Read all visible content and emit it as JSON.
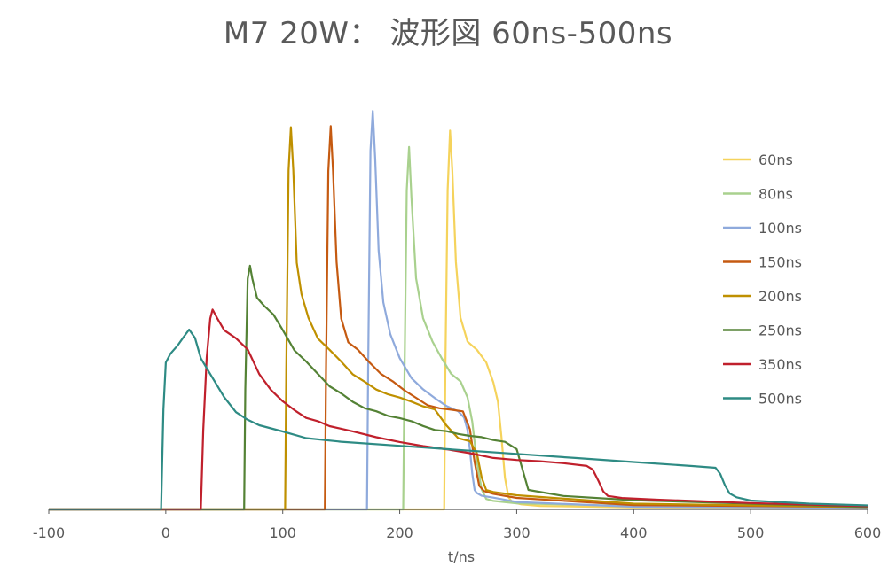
{
  "chart_data": {
    "type": "line",
    "title": "M7 20W： 波形図 60ns-500ns",
    "xlabel": "t/ns",
    "ylabel": "",
    "xlim": [
      -100,
      600
    ],
    "ylim": [
      0,
      1
    ],
    "x_ticks": [
      "-100",
      "0",
      "100",
      "200",
      "300",
      "400",
      "500",
      "600"
    ],
    "x_tick_values": [
      -100,
      0,
      100,
      200,
      300,
      400,
      500,
      600
    ],
    "grid": false,
    "legend_position": "right",
    "series": [
      {
        "name": "60ns",
        "color": "#f5d35c",
        "x": [
          -100,
          238,
          239,
          241,
          243,
          245,
          248,
          252,
          258,
          266,
          274,
          280,
          284,
          287,
          290,
          293,
          296,
          299,
          304,
          320,
          400,
          600
        ],
        "y": [
          0,
          0.0,
          0.35,
          0.8,
          0.95,
          0.85,
          0.62,
          0.48,
          0.42,
          0.4,
          0.37,
          0.32,
          0.27,
          0.18,
          0.08,
          0.03,
          0.02,
          0.015,
          0.012,
          0.01,
          0.005,
          0.003
        ]
      },
      {
        "name": "80ns",
        "color": "#a9d18e",
        "x": [
          -100,
          203,
          204,
          206,
          208,
          210,
          214,
          220,
          228,
          236,
          244,
          252,
          258,
          262,
          266,
          270,
          274,
          280,
          300,
          400,
          600
        ],
        "y": [
          0,
          0.0,
          0.3,
          0.8,
          0.91,
          0.78,
          0.58,
          0.48,
          0.42,
          0.38,
          0.34,
          0.32,
          0.28,
          0.22,
          0.12,
          0.05,
          0.025,
          0.02,
          0.015,
          0.008,
          0.004
        ]
      },
      {
        "name": "100ns",
        "color": "#8faadc",
        "x": [
          -100,
          172,
          173,
          175,
          177,
          179,
          182,
          186,
          192,
          200,
          210,
          220,
          230,
          240,
          250,
          255,
          258,
          260,
          262,
          264,
          266,
          270,
          280,
          300,
          400,
          600
        ],
        "y": [
          0,
          0.0,
          0.35,
          0.9,
          1.0,
          0.88,
          0.65,
          0.52,
          0.44,
          0.38,
          0.33,
          0.3,
          0.28,
          0.26,
          0.245,
          0.23,
          0.2,
          0.15,
          0.09,
          0.05,
          0.04,
          0.035,
          0.03,
          0.02,
          0.008,
          0.004
        ]
      },
      {
        "name": "150ns",
        "color": "#c55a11",
        "x": [
          -100,
          136,
          137,
          139,
          141,
          143,
          146,
          150,
          156,
          164,
          174,
          184,
          194,
          204,
          214,
          224,
          234,
          244,
          254,
          260,
          264,
          268,
          272,
          280,
          300,
          400,
          600
        ],
        "y": [
          0,
          0.0,
          0.35,
          0.85,
          0.96,
          0.85,
          0.62,
          0.48,
          0.42,
          0.4,
          0.37,
          0.34,
          0.32,
          0.3,
          0.28,
          0.26,
          0.255,
          0.25,
          0.245,
          0.2,
          0.12,
          0.06,
          0.045,
          0.04,
          0.03,
          0.012,
          0.006
        ]
      },
      {
        "name": "200ns",
        "color": "#bf9000",
        "x": [
          -100,
          102,
          103,
          105,
          107,
          109,
          112,
          116,
          122,
          130,
          140,
          150,
          160,
          170,
          180,
          190,
          200,
          210,
          220,
          230,
          240,
          250,
          260,
          266,
          270,
          274,
          280,
          300,
          400,
          600
        ],
        "y": [
          0,
          0.0,
          0.35,
          0.85,
          0.96,
          0.85,
          0.62,
          0.54,
          0.48,
          0.43,
          0.4,
          0.37,
          0.34,
          0.32,
          0.3,
          0.29,
          0.28,
          0.27,
          0.26,
          0.25,
          0.21,
          0.18,
          0.17,
          0.14,
          0.08,
          0.05,
          0.045,
          0.035,
          0.014,
          0.006
        ]
      },
      {
        "name": "250ns",
        "color": "#548235",
        "x": [
          -100,
          67,
          68,
          70,
          72,
          74,
          78,
          84,
          92,
          100,
          110,
          120,
          130,
          140,
          150,
          160,
          170,
          180,
          190,
          200,
          210,
          220,
          230,
          240,
          250,
          260,
          270,
          280,
          290,
          300,
          310,
          340,
          400,
          600
        ],
        "y": [
          0,
          0.0,
          0.3,
          0.58,
          0.61,
          0.58,
          0.53,
          0.51,
          0.49,
          0.45,
          0.4,
          0.37,
          0.34,
          0.31,
          0.29,
          0.27,
          0.255,
          0.245,
          0.235,
          0.23,
          0.22,
          0.21,
          0.2,
          0.195,
          0.19,
          0.185,
          0.18,
          0.175,
          0.17,
          0.15,
          0.05,
          0.035,
          0.022,
          0.006
        ]
      },
      {
        "name": "350ns",
        "color": "#c0202c",
        "x": [
          -100,
          30,
          32,
          35,
          38,
          40,
          44,
          50,
          60,
          70,
          80,
          90,
          100,
          110,
          120,
          130,
          140,
          160,
          180,
          200,
          220,
          240,
          260,
          280,
          300,
          320,
          340,
          360,
          365,
          370,
          374,
          378,
          390,
          420,
          500,
          600
        ],
        "y": [
          0,
          0.0,
          0.2,
          0.38,
          0.48,
          0.5,
          0.48,
          0.45,
          0.43,
          0.4,
          0.34,
          0.3,
          0.27,
          0.25,
          0.23,
          0.22,
          0.21,
          0.195,
          0.18,
          0.17,
          0.16,
          0.15,
          0.14,
          0.13,
          0.125,
          0.12,
          0.115,
          0.11,
          0.1,
          0.07,
          0.045,
          0.035,
          0.03,
          0.025,
          0.015,
          0.008
        ]
      },
      {
        "name": "500ns",
        "color": "#2e8b84",
        "x": [
          -100,
          -4,
          -2,
          0,
          4,
          10,
          15,
          20,
          25,
          30,
          40,
          50,
          60,
          70,
          80,
          100,
          120,
          150,
          200,
          250,
          300,
          350,
          400,
          450,
          470,
          474,
          478,
          482,
          488,
          500,
          550,
          600
        ],
        "y": [
          0,
          0.0,
          0.25,
          0.37,
          0.39,
          0.41,
          0.43,
          0.45,
          0.43,
          0.38,
          0.33,
          0.28,
          0.245,
          0.225,
          0.21,
          0.195,
          0.18,
          0.17,
          0.16,
          0.15,
          0.14,
          0.13,
          0.12,
          0.11,
          0.105,
          0.09,
          0.06,
          0.04,
          0.03,
          0.022,
          0.014,
          0.01
        ]
      }
    ]
  }
}
